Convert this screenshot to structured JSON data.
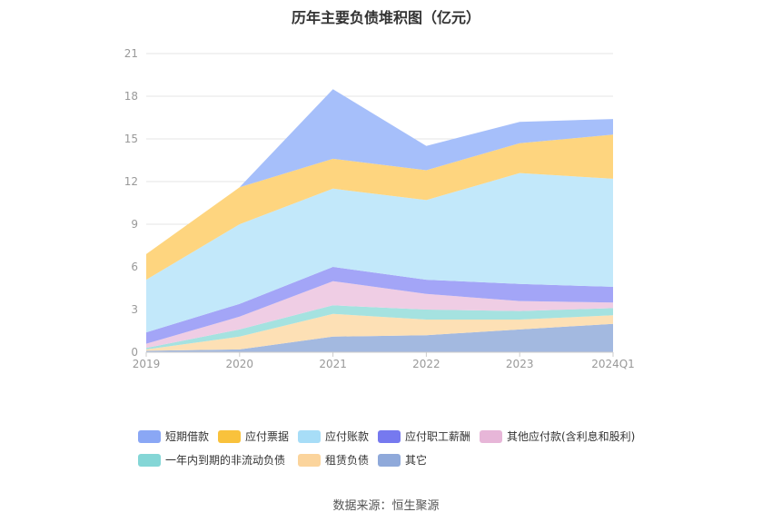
{
  "chart_data": {
    "type": "area",
    "stacked": true,
    "title": "历年主要负债堆积图（亿元）",
    "xlabel": "",
    "ylabel": "",
    "ylim": [
      0,
      21
    ],
    "yticks": [
      0,
      3,
      6,
      9,
      12,
      15,
      18,
      21
    ],
    "categories": [
      "2019",
      "2020",
      "2021",
      "2022",
      "2023",
      "2024Q1"
    ],
    "grid": true,
    "legend_position": "bottom",
    "series": [
      {
        "name": "其它",
        "color": "#a3b9e0",
        "values": [
          0.1,
          0.2,
          1.1,
          1.2,
          1.6,
          2.0
        ]
      },
      {
        "name": "租赁负债",
        "color": "#fde0b5",
        "values": [
          0.1,
          0.9,
          1.6,
          1.1,
          0.7,
          0.6
        ]
      },
      {
        "name": "一年内到期的非流动负债",
        "color": "#a5e2e0",
        "values": [
          0.1,
          0.5,
          0.6,
          0.7,
          0.6,
          0.5
        ]
      },
      {
        "name": "其他应付款(含利息和股利)",
        "color": "#efcde4",
        "values": [
          0.3,
          0.9,
          1.7,
          1.1,
          0.7,
          0.4
        ]
      },
      {
        "name": "应付职工薪酬",
        "color": "#a3a5f7",
        "values": [
          0.8,
          0.9,
          1.0,
          1.0,
          1.2,
          1.1
        ]
      },
      {
        "name": "应付账款",
        "color": "#c2e8fa",
        "values": [
          3.7,
          5.6,
          5.5,
          5.6,
          7.8,
          7.6
        ]
      },
      {
        "name": "应付票据",
        "color": "#fed57f",
        "values": [
          1.8,
          2.6,
          2.1,
          2.1,
          2.1,
          3.1
        ]
      },
      {
        "name": "短期借款",
        "color": "#a6bffa",
        "values": [
          0.0,
          0.0,
          4.9,
          1.7,
          1.5,
          1.1
        ]
      }
    ],
    "source": "数据来源：恒生聚源"
  },
  "legend": [
    {
      "name": "短期借款",
      "color": "#8aa7f5"
    },
    {
      "name": "应付票据",
      "color": "#f9c23c"
    },
    {
      "name": "应付账款",
      "color": "#a7ddf7"
    },
    {
      "name": "应付职工薪酬",
      "color": "#7679ef"
    },
    {
      "name": "其他应付款(含利息和股利)",
      "color": "#e7b6d8"
    },
    {
      "name": "一年内到期的非流动负债",
      "color": "#84d6d6"
    },
    {
      "name": "租赁负债",
      "color": "#fbd49c"
    },
    {
      "name": "其它",
      "color": "#8fa9da"
    }
  ]
}
